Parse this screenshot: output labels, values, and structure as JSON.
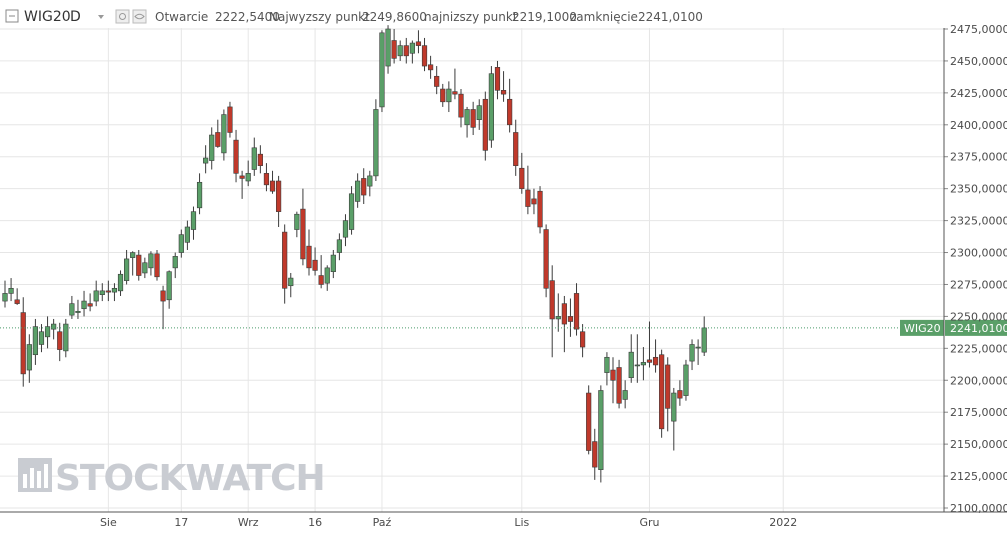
{
  "header": {
    "symbol": "WIG20",
    "interval": "D",
    "open_label": "Otwarcie",
    "open_value": "2222,5400",
    "high_label": "Najwyzszy punkt",
    "high_value": "2249,8600",
    "low_label": "najnizszy punkt",
    "low_value": "2219,1000",
    "close_label": "zamknięcie",
    "close_value": "2241,0100"
  },
  "watermark": "STOCKWATCH",
  "icons": [
    "collapse-icon",
    "chevron-down-icon",
    "settings-icon",
    "eye-icon"
  ],
  "colors": {
    "up": "#5a9f68",
    "down": "#c0392b",
    "grid": "#e6e6e6",
    "price_line": "#4a9a6a",
    "badge": "#5a9f68"
  },
  "chart_data": {
    "type": "candlestick",
    "series_name": "WIG20",
    "y_range": [
      2100,
      2485
    ],
    "y_ticks": [
      "2100,0000",
      "2125,0000",
      "2150,0000",
      "2175,0000",
      "2200,0000",
      "2225,0000",
      "2250,0000",
      "2275,0000",
      "2300,0000",
      "2325,0000",
      "2350,0000",
      "2375,0000",
      "2400,0000",
      "2425,0000",
      "2450,0000",
      "2475,0000"
    ],
    "x_labels": [
      {
        "label": "Sie",
        "index": 17
      },
      {
        "label": "17",
        "index": 29
      },
      {
        "label": "Wrz",
        "index": 40
      },
      {
        "label": "16",
        "index": 51
      },
      {
        "label": "Paź",
        "index": 62
      },
      {
        "label": "Lis",
        "index": 85
      },
      {
        "label": "Gru",
        "index": 106
      },
      {
        "label": "2022",
        "index": 128
      }
    ],
    "last_price": {
      "label": "WIG20",
      "value": "2241,0100",
      "y": 2241.01
    },
    "grid": true,
    "candles": [
      {
        "o": 2262,
        "h": 2278,
        "l": 2257,
        "c": 2268
      },
      {
        "o": 2268,
        "h": 2280,
        "l": 2262,
        "c": 2272
      },
      {
        "o": 2263,
        "h": 2272,
        "l": 2259,
        "c": 2260
      },
      {
        "o": 2253,
        "h": 2265,
        "l": 2195,
        "c": 2205
      },
      {
        "o": 2208,
        "h": 2236,
        "l": 2198,
        "c": 2228
      },
      {
        "o": 2220,
        "h": 2248,
        "l": 2212,
        "c": 2242
      },
      {
        "o": 2228,
        "h": 2244,
        "l": 2222,
        "c": 2238
      },
      {
        "o": 2234,
        "h": 2250,
        "l": 2225,
        "c": 2242
      },
      {
        "o": 2240,
        "h": 2248,
        "l": 2232,
        "c": 2244
      },
      {
        "o": 2238,
        "h": 2245,
        "l": 2215,
        "c": 2224
      },
      {
        "o": 2223,
        "h": 2248,
        "l": 2218,
        "c": 2244
      },
      {
        "o": 2251,
        "h": 2266,
        "l": 2248,
        "c": 2260
      },
      {
        "o": 2253,
        "h": 2263,
        "l": 2248,
        "c": 2254
      },
      {
        "o": 2256,
        "h": 2270,
        "l": 2250,
        "c": 2262
      },
      {
        "o": 2260,
        "h": 2268,
        "l": 2254,
        "c": 2258
      },
      {
        "o": 2262,
        "h": 2278,
        "l": 2258,
        "c": 2270
      },
      {
        "o": 2267,
        "h": 2276,
        "l": 2262,
        "c": 2270
      },
      {
        "o": 2270,
        "h": 2278,
        "l": 2262,
        "c": 2269
      },
      {
        "o": 2269,
        "h": 2276,
        "l": 2262,
        "c": 2272
      },
      {
        "o": 2270,
        "h": 2286,
        "l": 2266,
        "c": 2283
      },
      {
        "o": 2278,
        "h": 2302,
        "l": 2275,
        "c": 2295
      },
      {
        "o": 2296,
        "h": 2301,
        "l": 2282,
        "c": 2300
      },
      {
        "o": 2298,
        "h": 2302,
        "l": 2278,
        "c": 2282
      },
      {
        "o": 2284,
        "h": 2296,
        "l": 2280,
        "c": 2292
      },
      {
        "o": 2288,
        "h": 2301,
        "l": 2282,
        "c": 2299
      },
      {
        "o": 2299,
        "h": 2302,
        "l": 2278,
        "c": 2281
      },
      {
        "o": 2270,
        "h": 2274,
        "l": 2240,
        "c": 2262
      },
      {
        "o": 2263,
        "h": 2286,
        "l": 2256,
        "c": 2285
      },
      {
        "o": 2288,
        "h": 2300,
        "l": 2280,
        "c": 2297
      },
      {
        "o": 2300,
        "h": 2318,
        "l": 2296,
        "c": 2314
      },
      {
        "o": 2308,
        "h": 2325,
        "l": 2302,
        "c": 2320
      },
      {
        "o": 2318,
        "h": 2336,
        "l": 2310,
        "c": 2332
      },
      {
        "o": 2335,
        "h": 2362,
        "l": 2330,
        "c": 2355
      },
      {
        "o": 2370,
        "h": 2384,
        "l": 2362,
        "c": 2374
      },
      {
        "o": 2372,
        "h": 2398,
        "l": 2365,
        "c": 2392
      },
      {
        "o": 2394,
        "h": 2404,
        "l": 2382,
        "c": 2383
      },
      {
        "o": 2378,
        "h": 2412,
        "l": 2372,
        "c": 2408
      },
      {
        "o": 2414,
        "h": 2418,
        "l": 2390,
        "c": 2394
      },
      {
        "o": 2388,
        "h": 2396,
        "l": 2355,
        "c": 2362
      },
      {
        "o": 2360,
        "h": 2364,
        "l": 2342,
        "c": 2358
      },
      {
        "o": 2356,
        "h": 2372,
        "l": 2352,
        "c": 2362
      },
      {
        "o": 2365,
        "h": 2390,
        "l": 2360,
        "c": 2382
      },
      {
        "o": 2377,
        "h": 2384,
        "l": 2362,
        "c": 2368
      },
      {
        "o": 2362,
        "h": 2370,
        "l": 2348,
        "c": 2353
      },
      {
        "o": 2356,
        "h": 2364,
        "l": 2346,
        "c": 2348
      },
      {
        "o": 2356,
        "h": 2360,
        "l": 2320,
        "c": 2332
      },
      {
        "o": 2316,
        "h": 2322,
        "l": 2260,
        "c": 2272
      },
      {
        "o": 2274,
        "h": 2284,
        "l": 2265,
        "c": 2280
      },
      {
        "o": 2318,
        "h": 2332,
        "l": 2312,
        "c": 2330
      },
      {
        "o": 2334,
        "h": 2350,
        "l": 2290,
        "c": 2295
      },
      {
        "o": 2305,
        "h": 2318,
        "l": 2282,
        "c": 2288
      },
      {
        "o": 2294,
        "h": 2304,
        "l": 2282,
        "c": 2286
      },
      {
        "o": 2282,
        "h": 2298,
        "l": 2272,
        "c": 2275
      },
      {
        "o": 2276,
        "h": 2290,
        "l": 2270,
        "c": 2288
      },
      {
        "o": 2285,
        "h": 2302,
        "l": 2280,
        "c": 2298
      },
      {
        "o": 2300,
        "h": 2315,
        "l": 2294,
        "c": 2310
      },
      {
        "o": 2312,
        "h": 2330,
        "l": 2305,
        "c": 2325
      },
      {
        "o": 2318,
        "h": 2352,
        "l": 2314,
        "c": 2346
      },
      {
        "o": 2340,
        "h": 2362,
        "l": 2335,
        "c": 2356
      },
      {
        "o": 2358,
        "h": 2366,
        "l": 2338,
        "c": 2345
      },
      {
        "o": 2352,
        "h": 2364,
        "l": 2344,
        "c": 2360
      },
      {
        "o": 2360,
        "h": 2420,
        "l": 2356,
        "c": 2412
      },
      {
        "o": 2414,
        "h": 2474,
        "l": 2410,
        "c": 2472
      },
      {
        "o": 2446,
        "h": 2478,
        "l": 2440,
        "c": 2475
      },
      {
        "o": 2466,
        "h": 2475,
        "l": 2448,
        "c": 2452
      },
      {
        "o": 2454,
        "h": 2466,
        "l": 2450,
        "c": 2462
      },
      {
        "o": 2462,
        "h": 2468,
        "l": 2448,
        "c": 2454
      },
      {
        "o": 2456,
        "h": 2466,
        "l": 2448,
        "c": 2464
      },
      {
        "o": 2465,
        "h": 2474,
        "l": 2456,
        "c": 2462
      },
      {
        "o": 2462,
        "h": 2468,
        "l": 2442,
        "c": 2446
      },
      {
        "o": 2447,
        "h": 2454,
        "l": 2436,
        "c": 2443
      },
      {
        "o": 2438,
        "h": 2446,
        "l": 2424,
        "c": 2430
      },
      {
        "o": 2428,
        "h": 2432,
        "l": 2414,
        "c": 2418
      },
      {
        "o": 2418,
        "h": 2434,
        "l": 2410,
        "c": 2428
      },
      {
        "o": 2426,
        "h": 2444,
        "l": 2420,
        "c": 2424
      },
      {
        "o": 2424,
        "h": 2428,
        "l": 2398,
        "c": 2406
      },
      {
        "o": 2400,
        "h": 2414,
        "l": 2390,
        "c": 2412
      },
      {
        "o": 2412,
        "h": 2418,
        "l": 2392,
        "c": 2398
      },
      {
        "o": 2404,
        "h": 2420,
        "l": 2396,
        "c": 2415
      },
      {
        "o": 2420,
        "h": 2426,
        "l": 2372,
        "c": 2380
      },
      {
        "o": 2388,
        "h": 2446,
        "l": 2382,
        "c": 2440
      },
      {
        "o": 2445,
        "h": 2450,
        "l": 2420,
        "c": 2427
      },
      {
        "o": 2427,
        "h": 2442,
        "l": 2418,
        "c": 2424
      },
      {
        "o": 2420,
        "h": 2436,
        "l": 2394,
        "c": 2400
      },
      {
        "o": 2394,
        "h": 2404,
        "l": 2360,
        "c": 2368
      },
      {
        "o": 2366,
        "h": 2378,
        "l": 2346,
        "c": 2350
      },
      {
        "o": 2349,
        "h": 2368,
        "l": 2330,
        "c": 2336
      },
      {
        "o": 2342,
        "h": 2350,
        "l": 2330,
        "c": 2338
      },
      {
        "o": 2348,
        "h": 2352,
        "l": 2315,
        "c": 2320
      },
      {
        "o": 2318,
        "h": 2322,
        "l": 2265,
        "c": 2272
      },
      {
        "o": 2278,
        "h": 2290,
        "l": 2218,
        "c": 2248
      },
      {
        "o": 2248,
        "h": 2268,
        "l": 2238,
        "c": 2250
      },
      {
        "o": 2260,
        "h": 2266,
        "l": 2222,
        "c": 2244
      },
      {
        "o": 2250,
        "h": 2264,
        "l": 2234,
        "c": 2246
      },
      {
        "o": 2268,
        "h": 2276,
        "l": 2235,
        "c": 2240
      },
      {
        "o": 2238,
        "h": 2244,
        "l": 2218,
        "c": 2226
      },
      {
        "o": 2190,
        "h": 2196,
        "l": 2142,
        "c": 2145
      },
      {
        "o": 2152,
        "h": 2162,
        "l": 2122,
        "c": 2132
      },
      {
        "o": 2130,
        "h": 2196,
        "l": 2120,
        "c": 2192
      },
      {
        "o": 2206,
        "h": 2222,
        "l": 2196,
        "c": 2218
      },
      {
        "o": 2208,
        "h": 2218,
        "l": 2182,
        "c": 2200
      },
      {
        "o": 2210,
        "h": 2216,
        "l": 2178,
        "c": 2182
      },
      {
        "o": 2185,
        "h": 2200,
        "l": 2178,
        "c": 2192
      },
      {
        "o": 2202,
        "h": 2236,
        "l": 2198,
        "c": 2222
      },
      {
        "o": 2212,
        "h": 2236,
        "l": 2198,
        "c": 2212
      },
      {
        "o": 2212,
        "h": 2226,
        "l": 2200,
        "c": 2214
      },
      {
        "o": 2216,
        "h": 2246,
        "l": 2210,
        "c": 2214
      },
      {
        "o": 2218,
        "h": 2232,
        "l": 2206,
        "c": 2212
      },
      {
        "o": 2220,
        "h": 2224,
        "l": 2155,
        "c": 2162
      },
      {
        "o": 2212,
        "h": 2218,
        "l": 2160,
        "c": 2178
      },
      {
        "o": 2168,
        "h": 2194,
        "l": 2145,
        "c": 2190
      },
      {
        "o": 2192,
        "h": 2200,
        "l": 2180,
        "c": 2186
      },
      {
        "o": 2188,
        "h": 2216,
        "l": 2184,
        "c": 2212
      },
      {
        "o": 2215,
        "h": 2232,
        "l": 2208,
        "c": 2228
      },
      {
        "o": 2226,
        "h": 2232,
        "l": 2212,
        "c": 2226
      },
      {
        "o": 2222,
        "h": 2250,
        "l": 2219,
        "c": 2241
      }
    ]
  }
}
